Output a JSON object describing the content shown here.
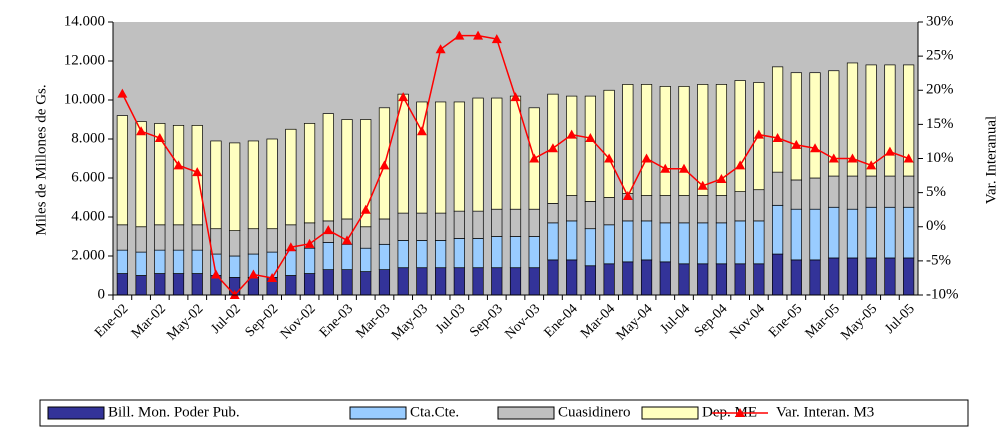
{
  "chart_data": {
    "type": "bar",
    "stacked": true,
    "y_label": "Miles de Millones de Gs.",
    "y2_label": "Var. Interanual",
    "categories": [
      "Ene-02",
      null,
      "Mar-02",
      null,
      "May-02",
      null,
      "Jul-02",
      null,
      "Sep-02",
      null,
      "Nov-02",
      null,
      "Ene-03",
      null,
      "Mar-03",
      null,
      "May-03",
      null,
      "Jul-03",
      null,
      "Sep-03",
      null,
      "Nov-03",
      null,
      "Ene-04",
      null,
      "Mar-04",
      null,
      "May-04",
      null,
      "Jul-04",
      null,
      "Sep-04",
      null,
      "Nov-04",
      null,
      "Ene-05",
      null,
      "Mar-05",
      null,
      "May-05",
      null,
      "Jul-05"
    ],
    "series": [
      {
        "name": "Bill. Mon. Poder Pub.",
        "color": "#333399",
        "values": [
          1100,
          1000,
          1100,
          1100,
          1100,
          1000,
          900,
          900,
          900,
          1000,
          1100,
          1300,
          1300,
          1200,
          1300,
          1400,
          1400,
          1400,
          1400,
          1400,
          1400,
          1400,
          1400,
          1800,
          1800,
          1500,
          1600,
          1700,
          1800,
          1700,
          1600,
          1600,
          1600,
          1600,
          1600,
          2100,
          1800,
          1800,
          1900,
          1900,
          1900,
          1900,
          1900
        ]
      },
      {
        "name": "Cta.Cte.",
        "color": "#99ccff",
        "values": [
          1200,
          1200,
          1200,
          1200,
          1200,
          1100,
          1100,
          1200,
          1300,
          1300,
          1300,
          1400,
          1300,
          1200,
          1300,
          1400,
          1400,
          1400,
          1500,
          1500,
          1600,
          1600,
          1600,
          1900,
          2000,
          1900,
          2000,
          2100,
          2000,
          2000,
          2100,
          2100,
          2100,
          2200,
          2200,
          2500,
          2600,
          2600,
          2600,
          2500,
          2600,
          2600,
          2600
        ]
      },
      {
        "name": "Cuasidinero",
        "color": "#c0c0c0",
        "values": [
          1300,
          1300,
          1300,
          1300,
          1300,
          1300,
          1300,
          1300,
          1200,
          1300,
          1300,
          1100,
          1300,
          1100,
          1300,
          1400,
          1400,
          1400,
          1400,
          1400,
          1400,
          1400,
          1400,
          1000,
          1300,
          1400,
          1400,
          1400,
          1300,
          1400,
          1400,
          1400,
          1400,
          1500,
          1600,
          1700,
          1500,
          1600,
          1600,
          1700,
          1600,
          1600,
          1600
        ]
      },
      {
        "name": "Dep. ME",
        "color": "#ffffc0",
        "values": [
          5600,
          5400,
          5200,
          5100,
          5100,
          4500,
          4500,
          4500,
          4600,
          4900,
          5100,
          5500,
          5100,
          5500,
          5700,
          6100,
          5700,
          5700,
          5600,
          5800,
          5700,
          5800,
          5200,
          5600,
          5100,
          5400,
          5500,
          5600,
          5700,
          5600,
          5600,
          5700,
          5700,
          5700,
          5500,
          5400,
          5500,
          5400,
          5400,
          5800,
          5700,
          5700,
          5700
        ]
      },
      {
        "name": "Var. Interan. M3",
        "color": "#ff0000",
        "type": "line",
        "axis": "y2",
        "values": [
          19.5,
          14,
          13,
          9,
          8,
          -7,
          -10,
          -7,
          -7.5,
          -3,
          -2.5,
          -0.5,
          -2,
          2.5,
          9,
          19,
          14,
          26,
          28,
          28,
          27.5,
          19,
          10,
          11.5,
          13.5,
          13,
          10,
          4.5,
          10,
          8.5,
          8.5,
          6,
          7,
          9,
          13.5,
          13,
          12,
          11.5,
          10,
          10,
          9,
          11,
          10
        ]
      }
    ],
    "ylim": [
      0,
      14000
    ],
    "yticks": [
      0,
      {
        "value": 2000,
        "label": "2.000"
      },
      {
        "value": 4000,
        "label": "4.000"
      },
      {
        "value": 6000,
        "label": "6.000"
      },
      {
        "value": 8000,
        "label": "8.000"
      },
      {
        "value": 10000,
        "label": "10.000"
      },
      {
        "value": 12000,
        "label": "12.000"
      },
      {
        "value": 14000,
        "label": "14.000"
      }
    ],
    "y2lim": [
      -10,
      30
    ],
    "y2ticks": [
      {
        "value": -10,
        "label": "-10%"
      },
      {
        "value": -5,
        "label": "-5%"
      },
      {
        "value": 0,
        "label": "0%"
      },
      {
        "value": 5,
        "label": "5%"
      },
      {
        "value": 10,
        "label": "10%"
      },
      {
        "value": 15,
        "label": "15%"
      },
      {
        "value": 20,
        "label": "20%"
      },
      {
        "value": 25,
        "label": "25%"
      },
      {
        "value": 30,
        "label": "30%"
      }
    ],
    "plot_background": "#c0c0c0",
    "legend": "bottom"
  }
}
